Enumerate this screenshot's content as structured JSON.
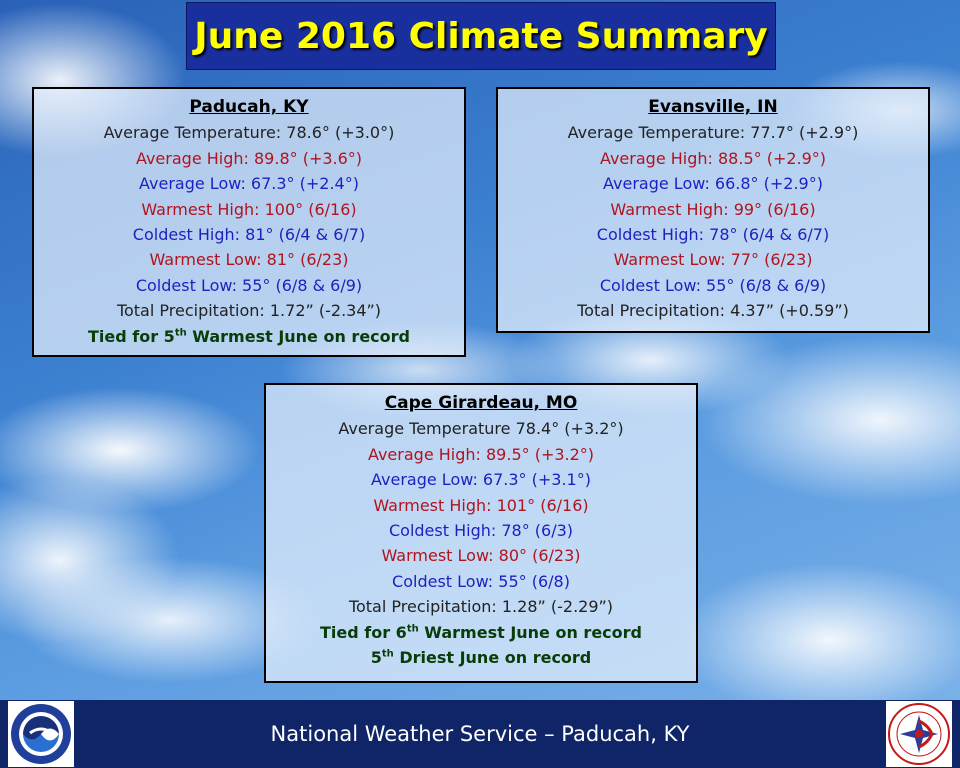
{
  "title": "June 2016 Climate Summary",
  "stations": {
    "paducah": {
      "name": "Paducah, KY",
      "avg_temp": "Average Temperature: 78.6° (+3.0°)",
      "avg_high": "Average High: 89.8° (+3.6°)",
      "avg_low": "Average Low: 67.3° (+2.4°)",
      "warmest_high": "Warmest High: 100° (6/16)",
      "coldest_high": "Coldest High: 81° (6/4 & 6/7)",
      "warmest_low": "Warmest Low: 81° (6/23)",
      "coldest_low": "Coldest Low: 55° (6/8 & 6/9)",
      "precip": "Total Precipitation: 1.72” (-2.34”)",
      "note_pre": "Tied for 5",
      "note_sup": "th",
      "note_post": " Warmest June on record"
    },
    "evansville": {
      "name": "Evansville, IN",
      "avg_temp": "Average Temperature: 77.7° (+2.9°)",
      "avg_high": "Average High: 88.5° (+2.9°)",
      "avg_low": "Average Low: 66.8° (+2.9°)",
      "warmest_high": "Warmest High: 99° (6/16)",
      "coldest_high": "Coldest High: 78° (6/4 & 6/7)",
      "warmest_low": "Warmest Low: 77° (6/23)",
      "coldest_low": "Coldest Low: 55° (6/8 & 6/9)",
      "precip": "Total Precipitation: 4.37” (+0.59”)"
    },
    "cape": {
      "name": "Cape Girardeau, MO",
      "avg_temp": "Average Temperature 78.4° (+3.2°)",
      "avg_high": "Average High: 89.5° (+3.2°)",
      "avg_low": "Average Low: 67.3° (+3.1°)",
      "warmest_high": "Warmest High: 101° (6/16)",
      "coldest_high": "Coldest High: 78° (6/3)",
      "warmest_low": "Warmest Low: 80° (6/23)",
      "coldest_low": "Coldest Low: 55° (6/8)",
      "precip": "Total Precipitation: 1.28” (-2.29”)",
      "note1_pre": "Tied for 6",
      "note1_sup": "th",
      "note1_post": " Warmest June on record",
      "note2_pre": "5",
      "note2_sup": "th",
      "note2_post": " Driest June on record"
    }
  },
  "footer": {
    "text": "National Weather Service – Paducah, KY",
    "left_logo": "noaa-logo",
    "right_logo": "nws-logo"
  },
  "colors": {
    "title_bg": "#1a2f9e",
    "title_text": "#ffff00",
    "red": "#b0141e",
    "blue": "#1f1fbf",
    "green": "#083c08",
    "footer_bg": "#0f2568"
  }
}
